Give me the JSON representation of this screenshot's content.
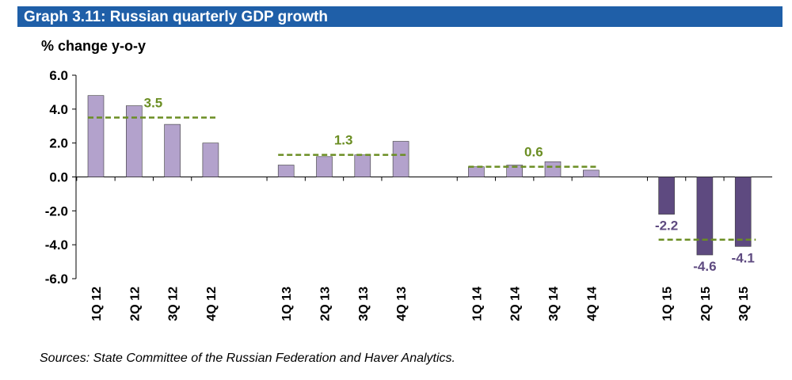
{
  "title": "Graph 3.11: Russian quarterly GDP growth",
  "source": "Sources: State Committee of the Russian Federation and Haver Analytics.",
  "colors": {
    "title_bg": "#1f5fa8",
    "bar_light": "#b3a2cc",
    "bar_dark": "#5e4a80",
    "avg_line": "#6b8e23",
    "avg_label_green": "#6b8e23",
    "avg_label_purple": "#5e4a80"
  },
  "chart_data": {
    "type": "bar",
    "ylabel": "% change y-o-y",
    "ylim": [
      -6,
      6
    ],
    "yticks": [
      "6.0",
      "4.0",
      "2.0",
      "0.0",
      "-2.0",
      "-4.0",
      "-6.0"
    ],
    "groups": [
      {
        "categories": [
          "1Q 12",
          "2Q 12",
          "3Q 12",
          "4Q 12"
        ],
        "values": [
          4.8,
          4.2,
          3.1,
          2.0
        ],
        "average": 3.5,
        "average_label": "3.5",
        "style": "light"
      },
      {
        "categories": [
          "1Q 13",
          "2Q 13",
          "3Q 13",
          "4Q 13"
        ],
        "values": [
          0.7,
          1.2,
          1.3,
          2.1
        ],
        "average": 1.3,
        "average_label": "1.3",
        "style": "light"
      },
      {
        "categories": [
          "1Q 14",
          "2Q 14",
          "3Q 14",
          "4Q 14"
        ],
        "values": [
          0.6,
          0.7,
          0.9,
          0.4
        ],
        "average": 0.6,
        "average_label": "0.6",
        "style": "light"
      },
      {
        "categories": [
          "1Q 15",
          "2Q 15",
          "3Q 15"
        ],
        "values": [
          -2.2,
          -4.6,
          -4.1
        ],
        "average": -3.7,
        "value_labels": [
          "-2.2",
          "-4.6",
          "-4.1"
        ],
        "style": "dark"
      }
    ]
  }
}
